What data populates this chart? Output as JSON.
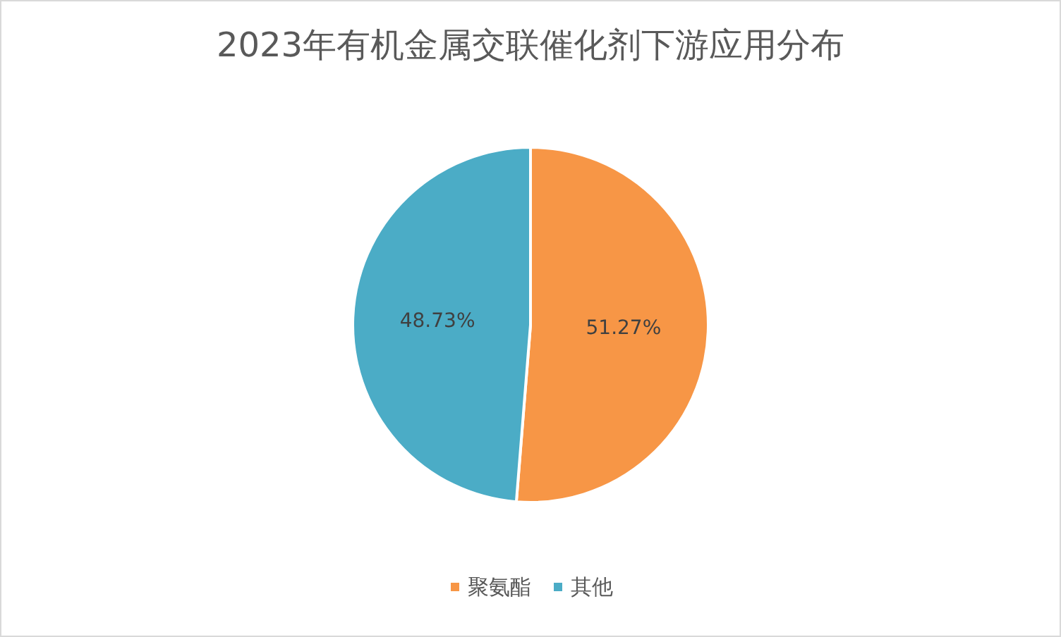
{
  "chart_data": {
    "type": "pie",
    "title": "2023年有机金属交联催化剂下游应用分布",
    "categories": [
      "聚氨酯",
      "其他"
    ],
    "values": [
      51.27,
      48.73
    ],
    "colors": [
      "#f79646",
      "#4bacc6"
    ],
    "value_labels": [
      "51.27%",
      "48.73%"
    ],
    "legend": "bottom"
  }
}
